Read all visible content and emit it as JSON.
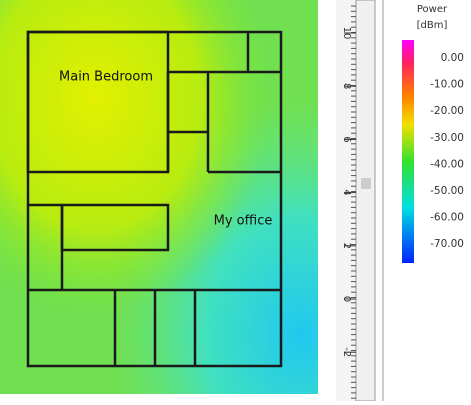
{
  "heatmap": {
    "rooms": {
      "main_bedroom": "Main Bedroom",
      "my_office": "My office"
    }
  },
  "ruler": {
    "labels": [
      "10",
      "8",
      "6",
      "4",
      "2",
      "0",
      "-2"
    ]
  },
  "legend": {
    "title": "Power",
    "unit": "[dBm]",
    "ticks": [
      "0.00",
      "-10.00",
      "-20.00",
      "-30.00",
      "-40.00",
      "-50.00",
      "-60.00",
      "-70.00"
    ]
  }
}
